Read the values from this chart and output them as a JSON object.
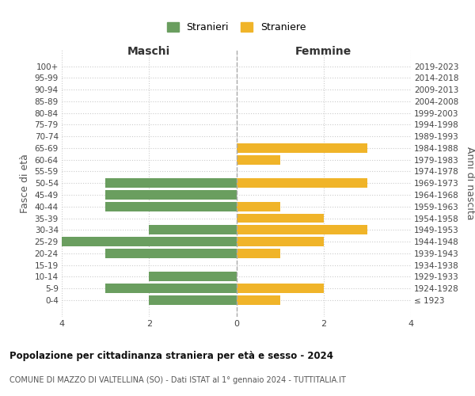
{
  "age_groups": [
    "100+",
    "95-99",
    "90-94",
    "85-89",
    "80-84",
    "75-79",
    "70-74",
    "65-69",
    "60-64",
    "55-59",
    "50-54",
    "45-49",
    "40-44",
    "35-39",
    "30-34",
    "25-29",
    "20-24",
    "15-19",
    "10-14",
    "5-9",
    "0-4"
  ],
  "birth_years": [
    "≤ 1923",
    "1924-1928",
    "1929-1933",
    "1934-1938",
    "1939-1943",
    "1944-1948",
    "1949-1953",
    "1954-1958",
    "1959-1963",
    "1964-1968",
    "1969-1973",
    "1974-1978",
    "1979-1983",
    "1984-1988",
    "1989-1993",
    "1994-1998",
    "1999-2003",
    "2004-2008",
    "2009-2013",
    "2014-2018",
    "2019-2023"
  ],
  "males": [
    0,
    0,
    0,
    0,
    0,
    0,
    0,
    0,
    0,
    0,
    3,
    3,
    3,
    0,
    2,
    4,
    3,
    0,
    2,
    3,
    2
  ],
  "females": [
    0,
    0,
    0,
    0,
    0,
    0,
    0,
    3,
    1,
    0,
    3,
    0,
    1,
    2,
    3,
    2,
    1,
    0,
    0,
    2,
    1
  ],
  "male_color": "#6a9e5f",
  "female_color": "#f0b429",
  "male_label": "Stranieri",
  "female_label": "Straniere",
  "xlim": 4,
  "title1": "Popolazione per cittadinanza straniera per età e sesso - 2024",
  "title2": "COMUNE DI MAZZO DI VALTELLINA (SO) - Dati ISTAT al 1° gennaio 2024 - TUTTITALIA.IT",
  "xlabel_left": "Maschi",
  "xlabel_right": "Femmine",
  "ylabel_left": "Fasce di età",
  "ylabel_right": "Anni di nascita",
  "bg_color": "#ffffff",
  "grid_color": "#cccccc",
  "bar_height": 0.8
}
